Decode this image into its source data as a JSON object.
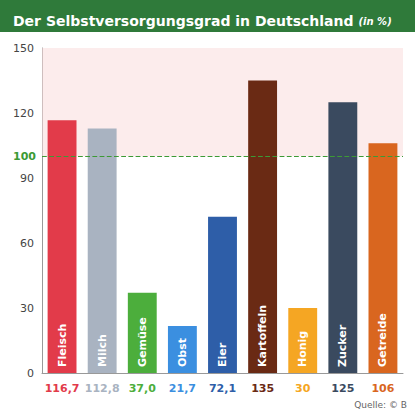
{
  "chart_data": {
    "type": "bar",
    "title": "Der Selbstversorgungsgrad in Deutschland",
    "subtitle": "(in %)",
    "categories": [
      "Fleisch",
      "Milch",
      "Gemüse",
      "Obst",
      "Eier",
      "Kartoffeln",
      "Honig",
      "Zucker",
      "Getreide"
    ],
    "values": [
      116.7,
      112.8,
      37.0,
      21.7,
      72.1,
      135,
      30,
      125,
      106
    ],
    "value_labels": [
      "116,7",
      "112,8",
      "37,0",
      "21,7",
      "72,1",
      "135",
      "30",
      "125",
      "106"
    ],
    "colors": [
      "#e23b4a",
      "#a9b3c1",
      "#4cae3c",
      "#3b8fe0",
      "#2e5ea8",
      "#6a2a14",
      "#f5a623",
      "#3a4a5f",
      "#d9661f"
    ],
    "ylim": [
      0,
      150
    ],
    "yticks": [
      0,
      30,
      60,
      90,
      120,
      150
    ],
    "reference_line": {
      "value": 100,
      "label": "100"
    },
    "source": "Quelle: © B",
    "data_labels": true,
    "grid": false
  }
}
